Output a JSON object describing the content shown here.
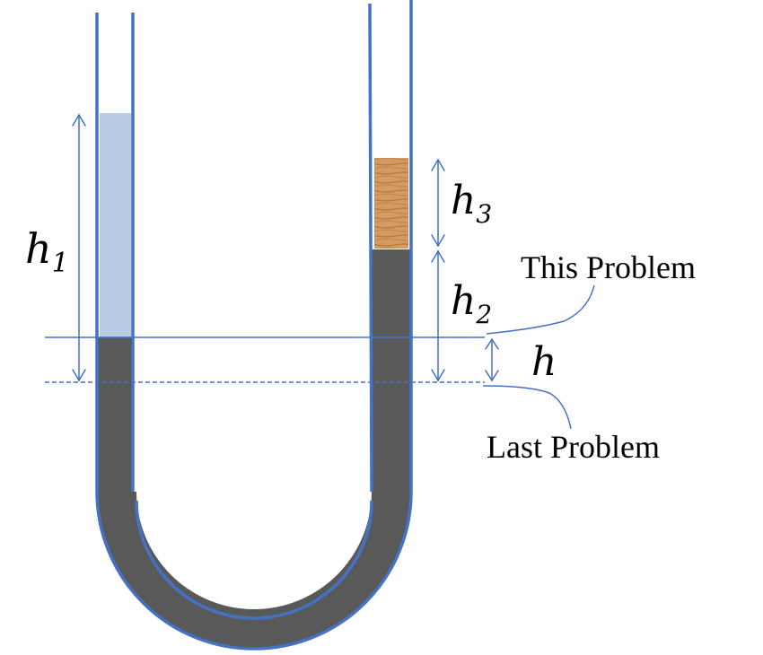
{
  "labels": {
    "h1": {
      "main": "h",
      "sub": "1"
    },
    "h2": {
      "main": "h",
      "sub": "2"
    },
    "h3": {
      "main": "h",
      "sub": "3"
    },
    "h": "h",
    "this_problem": "This Problem",
    "last_problem": "Last Problem"
  },
  "colors": {
    "tube": "#4472C4",
    "mercury": "#595959",
    "water": "#B8CCE4",
    "wood_light": "#D8A06A",
    "wood_dark": "#B7773F",
    "line": "#4472C4",
    "background": "#FFFFFF"
  },
  "icons": {
    "plug": "wood-block-icon"
  }
}
